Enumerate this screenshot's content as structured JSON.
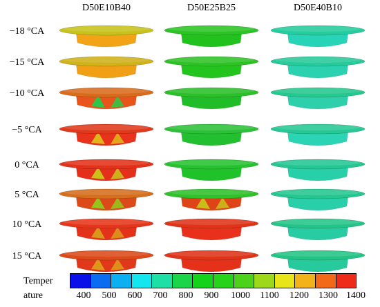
{
  "columns": [
    "D50E10B40",
    "D50E25B25",
    "D50E40B10"
  ],
  "rows": [
    "−18 °CA",
    "−15 °CA",
    "−10 °CA",
    "−5 °CA",
    "0 °CA",
    "5 °CA",
    "10 °CA",
    "15 °CA"
  ],
  "cells": [
    [
      {
        "rim": "#c8c21c",
        "body": "#f2a316",
        "hot": null
      },
      {
        "rim": "#2bc424",
        "body": "#22c21e",
        "hot": null
      },
      {
        "rim": "#25cc9e",
        "body": "#28d4b8",
        "hot": null
      }
    ],
    [
      {
        "rim": "#d0b21a",
        "body": "#f1a015",
        "hot": null
      },
      {
        "rim": "#2ec226",
        "body": "#24c41f",
        "hot": null
      },
      {
        "rim": "#27ca9a",
        "body": "#2ad2b2",
        "hot": null
      }
    ],
    [
      {
        "rim": "#d96c1c",
        "body": "#e8541a",
        "hot": "#1ad34e"
      },
      {
        "rim": "#2bbf2a",
        "body": "#20bd28",
        "hot": null
      },
      {
        "rim": "#25c88e",
        "body": "#2ed0ac",
        "hot": null
      }
    ],
    [
      {
        "rim": "#e03a1c",
        "body": "#e9321b",
        "hot": "#e0c21c"
      },
      {
        "rim": "#2dc13a",
        "body": "#22c030",
        "hot": null
      },
      {
        "rim": "#27c894",
        "body": "#2cd4b6",
        "hot": null
      }
    ],
    [
      {
        "rim": "#e2321a",
        "body": "#e4301a",
        "hot": "#c9d01c"
      },
      {
        "rim": "#27c230",
        "body": "#20c22a",
        "hot": null
      },
      {
        "rim": "#24c692",
        "body": "#28d0aa",
        "hot": null
      }
    ],
    [
      {
        "rim": "#d56e1d",
        "body": "#dd4a1a",
        "hot": "#8fd21c"
      },
      {
        "rim": "#2ec12a",
        "body": "#df4418",
        "hot": "#c8cb1a"
      },
      {
        "rim": "#25c690",
        "body": "#28cfa8",
        "hot": null
      }
    ],
    [
      {
        "rim": "#e4361a",
        "body": "#e4321a",
        "hot": "#d8a21a"
      },
      {
        "rim": "#e03418",
        "body": "#e8301a",
        "hot": null
      },
      {
        "rim": "#24c488",
        "body": "#27cca2",
        "hot": null
      }
    ],
    [
      {
        "rim": "#dc4a1a",
        "body": "#e2381a",
        "hot": "#e0a21a"
      },
      {
        "rim": "#e03418",
        "body": "#e5301a",
        "hot": null
      },
      {
        "rim": "#23c484",
        "body": "#26ca9c",
        "hot": null
      }
    ]
  ],
  "legend": {
    "title_line1": "Temper",
    "title_line2": "ature",
    "colors": [
      "#0b10e8",
      "#0a6cf0",
      "#0ab0f2",
      "#14e6f0",
      "#1ee0a6",
      "#1ad44a",
      "#12d21a",
      "#26d21a",
      "#4cd21a",
      "#9ed81a",
      "#e8e61a",
      "#f3b219",
      "#f26a18",
      "#ee2a18"
    ],
    "ticks": [
      "400",
      "500",
      "600",
      "700",
      "800",
      "900",
      "1000",
      "1100",
      "1200",
      "1300",
      "1400"
    ]
  }
}
